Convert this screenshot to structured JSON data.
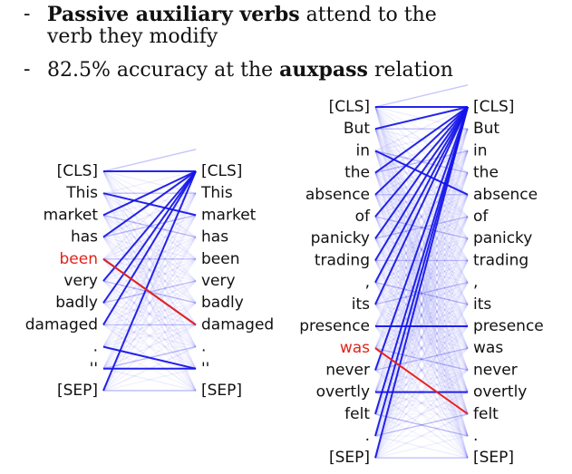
{
  "bullets": [
    {
      "dash": "-",
      "bold": "Passive auxiliary verbs",
      "rest_a": " attend to the",
      "rest_b": "verb they modify"
    },
    {
      "dash": "-",
      "prefix": "82.5% accuracy at the ",
      "bold": "auxpass",
      "suffix": " relation"
    }
  ],
  "diagrams": [
    {
      "tokens": [
        "[CLS]",
        "This",
        "market",
        "has",
        "been",
        "very",
        "badly",
        "damaged",
        ".",
        "''",
        "[SEP]"
      ],
      "highlight_left": 4,
      "highlight_right": -1,
      "strong_edges": [
        [
          1,
          2
        ],
        [
          2,
          0
        ],
        [
          3,
          0
        ],
        [
          4,
          7
        ],
        [
          5,
          0
        ],
        [
          6,
          0
        ],
        [
          7,
          0
        ],
        [
          8,
          9
        ],
        [
          9,
          9
        ],
        [
          10,
          0
        ],
        [
          0,
          0
        ]
      ],
      "highlight_edge": [
        4,
        7
      ]
    },
    {
      "tokens": [
        "[CLS]",
        "But",
        "in",
        "the",
        "absence",
        "of",
        "panicky",
        "trading",
        ",",
        "its",
        "presence",
        "was",
        "never",
        "overtly",
        "felt",
        ".",
        "[SEP]"
      ],
      "highlight_left": 11,
      "highlight_right": -1,
      "strong_edges": [
        [
          0,
          0
        ],
        [
          1,
          0
        ],
        [
          2,
          4
        ],
        [
          3,
          0
        ],
        [
          4,
          0
        ],
        [
          5,
          0
        ],
        [
          6,
          0
        ],
        [
          7,
          0
        ],
        [
          8,
          0
        ],
        [
          9,
          0
        ],
        [
          10,
          10
        ],
        [
          12,
          0
        ],
        [
          13,
          13
        ],
        [
          14,
          0
        ],
        [
          15,
          0
        ],
        [
          16,
          0
        ]
      ],
      "highlight_edge": [
        11,
        14
      ]
    }
  ]
}
